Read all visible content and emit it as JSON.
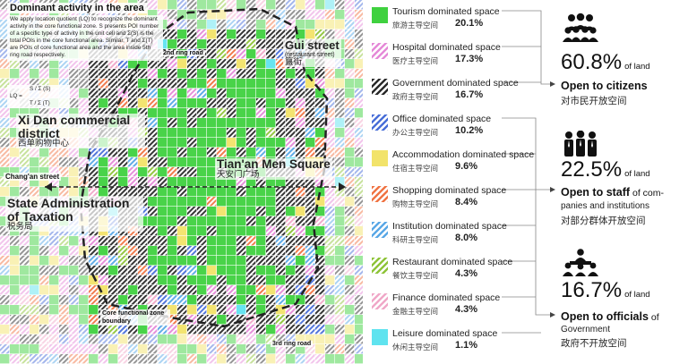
{
  "map": {
    "title": "Dominant activity in the area",
    "description": "We apply location quotient (LQ) to recognize the dominant activity in the core functional zone. S presents POI number of a specific type of activity in the unit cell and Σ(S) is the total POIs in the core functional area. Similar, T and Σ(T) are POIs of core functional area and the area inside 5th ring road respectively.",
    "formula_line1": "S / Σ (S)",
    "formula_line2": "LQ =",
    "formula_line3": "T / Σ (T)",
    "labels": {
      "gui_street": "Gui street",
      "gui_street_note": "(restaurant street)",
      "gui_street_cn": "簋街",
      "second_ring": "2nd ring road",
      "xidan": "Xi Dan commercial district",
      "xidan_cn": "西单购物中心",
      "tiananmen": "Tian'an Men Square",
      "tiananmen_cn": "天安门广场",
      "changan": "Chang'an street",
      "taxation": "State Administration of Taxation",
      "taxation_cn": "税务局",
      "core_zone": "Core functional zone boundary",
      "third_ring": "3rd ring road"
    }
  },
  "legend": [
    {
      "name": "Tourism dominated space",
      "cn": "旅游主导空间",
      "pct": "20.1%",
      "color": "#3fd13f",
      "pattern": "solid"
    },
    {
      "name": "Hospital dominated space",
      "cn": "医疗主导空间",
      "pct": "17.3%",
      "color": "#e58ad8",
      "pattern": "hatch"
    },
    {
      "name": "Government dominated space",
      "cn": "政府主导空间",
      "pct": "16.7%",
      "color": "#2b2b2b",
      "pattern": "hatch"
    },
    {
      "name": "Office dominated space",
      "cn": "办公主导空间",
      "pct": "10.2%",
      "color": "#4a6fd8",
      "pattern": "hatch"
    },
    {
      "name": "Accommodation dominated space",
      "cn": "住宿主导空间",
      "pct": "9.6%",
      "color": "#f2e36a",
      "pattern": "solid"
    },
    {
      "name": "Shopping dominated space",
      "cn": "购物主导空间",
      "pct": "8.4%",
      "color": "#f07545",
      "pattern": "hatch"
    },
    {
      "name": "Institution dominated space",
      "cn": "科研主导空间",
      "pct": "8.0%",
      "color": "#5aa8e6",
      "pattern": "hatch"
    },
    {
      "name": "Restaurant dominated space",
      "cn": "餐饮主导空间",
      "pct": "4.3%",
      "color": "#8fc43a",
      "pattern": "hatch"
    },
    {
      "name": "Finance dominated space",
      "cn": "金融主导空间",
      "pct": "4.3%",
      "color": "#f0a8c8",
      "pattern": "hatch"
    },
    {
      "name": "Leisure dominated space",
      "cn": "休闲主导空间",
      "pct": "1.1%",
      "color": "#5fe3ef",
      "pattern": "solid"
    }
  ],
  "groups": [
    {
      "icon": "crowd-icon",
      "pct": "60.8%",
      "unit": "of land",
      "title": "Open to citizens",
      "title_rest": "",
      "sub": "",
      "cn": "对市民开放空间"
    },
    {
      "icon": "staff-icon",
      "pct": "22.5%",
      "unit": "of land",
      "title": "Open to staff",
      "title_rest": " of com-",
      "sub": "panies and institutions",
      "cn": "对部分群体开放空间"
    },
    {
      "icon": "officials-icon",
      "pct": "16.7%",
      "unit": "of land",
      "title": "Open to officials",
      "title_rest": " of",
      "sub": "Government",
      "cn": "政府不开放空间"
    }
  ]
}
